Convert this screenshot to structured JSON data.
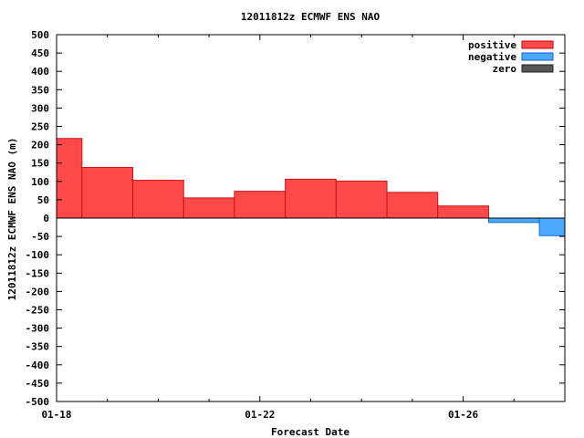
{
  "chart_data": {
    "type": "bar",
    "title": "12011812z ECMWF ENS NAO",
    "xlabel": "Forecast Date",
    "ylabel": "12011812z ECMWF ENS NAO (m)",
    "ylim": [
      -500,
      500
    ],
    "y_ticks": [
      500,
      450,
      400,
      350,
      300,
      250,
      200,
      150,
      100,
      50,
      0,
      -50,
      -100,
      -150,
      -200,
      -250,
      -300,
      -350,
      -400,
      -450,
      -500
    ],
    "xlim_days": [
      0,
      10
    ],
    "x_tick_labels": [
      {
        "day": 0,
        "label": "01-18"
      },
      {
        "day": 4,
        "label": "01-22"
      },
      {
        "day": 8,
        "label": "01-26"
      }
    ],
    "x_minor_days": [
      1,
      2,
      3,
      5,
      6,
      7,
      9
    ],
    "bars": [
      {
        "start": 0.0,
        "end": 0.5,
        "value": 217
      },
      {
        "start": 0.5,
        "end": 1.5,
        "value": 138
      },
      {
        "start": 1.5,
        "end": 2.5,
        "value": 103
      },
      {
        "start": 2.5,
        "end": 3.5,
        "value": 55
      },
      {
        "start": 3.5,
        "end": 4.5,
        "value": 73
      },
      {
        "start": 4.5,
        "end": 5.5,
        "value": 106
      },
      {
        "start": 5.5,
        "end": 6.5,
        "value": 101
      },
      {
        "start": 6.5,
        "end": 7.5,
        "value": 70
      },
      {
        "start": 7.5,
        "end": 8.5,
        "value": 33
      },
      {
        "start": 8.5,
        "end": 9.5,
        "value": -12
      },
      {
        "start": 9.5,
        "end": 10.0,
        "value": -48
      }
    ],
    "legend": {
      "placement": "top-right",
      "items": [
        {
          "label": "positive",
          "color": "#ff4a4a",
          "edge": "#cc0000"
        },
        {
          "label": "negative",
          "color": "#4aa8ff",
          "edge": "#1060c0"
        },
        {
          "label": "zero",
          "color": "#555555",
          "edge": "#222222"
        }
      ]
    },
    "colors": {
      "positive": "#ff4a4a",
      "positive_edge": "#cc1111",
      "negative": "#4aa8ff",
      "negative_edge": "#1a6fd0",
      "zero_line": "#000000"
    }
  }
}
